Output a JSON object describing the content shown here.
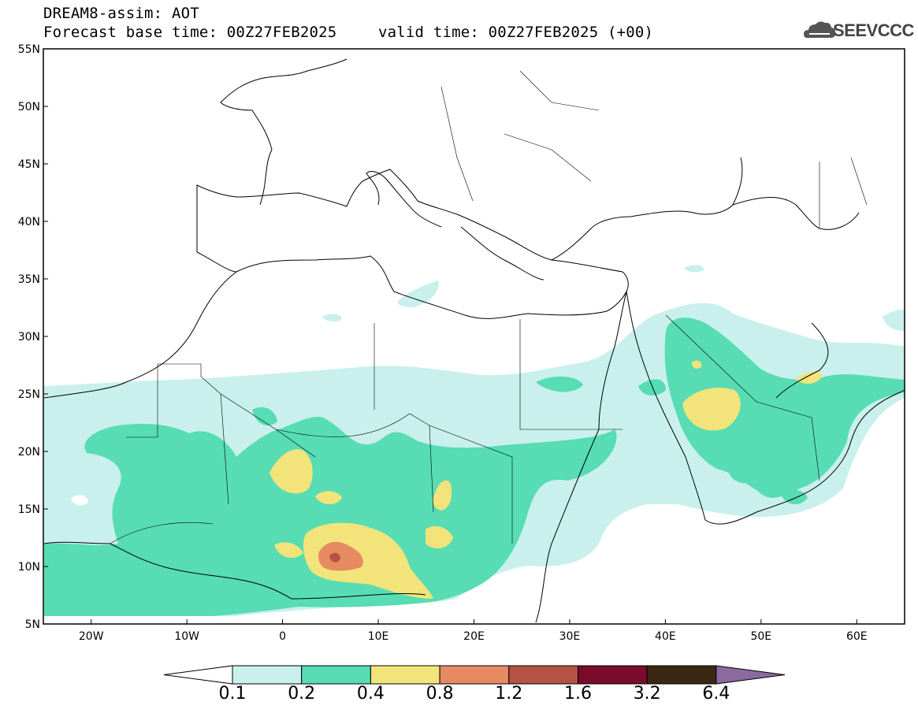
{
  "header": {
    "line1": "DREAM8-assim: AOT",
    "line2": "Forecast base time: 00Z27FEB2025",
    "line3": "valid time: 00Z27FEB2025 (+00)",
    "logo_text": "SEEVCCC"
  },
  "map": {
    "lat_labels": [
      "55N",
      "50N",
      "45N",
      "40N",
      "35N",
      "30N",
      "25N",
      "20N",
      "15N",
      "10N",
      "5N"
    ],
    "lon_labels": [
      "20W",
      "10W",
      "0",
      "10E",
      "20E",
      "30E",
      "40E",
      "50E",
      "60E"
    ],
    "lat_range": [
      5,
      55
    ],
    "lon_range": [
      -25,
      65
    ],
    "grid": false
  },
  "colorbar": {
    "thresholds": [
      "0.1",
      "0.2",
      "0.4",
      "0.8",
      "1.2",
      "1.6",
      "3.2",
      "6.4"
    ],
    "colors": [
      "#ffffff",
      "#c9f0ec",
      "#57dcb3",
      "#f2e47a",
      "#e68a62",
      "#b45343",
      "#7a0b2c",
      "#3a2714",
      "#8b6aa0"
    ]
  }
}
